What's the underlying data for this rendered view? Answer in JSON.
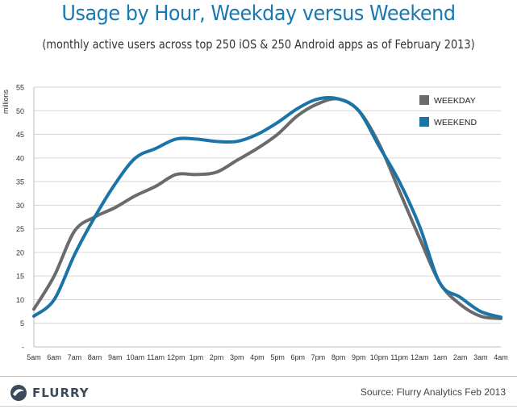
{
  "title": "Usage by Hour, Weekday versus Weekend",
  "subtitle": "(monthly active users across top 250 iOS & 250 Android apps as of February 2013)",
  "footer": {
    "brand": "FLURRY",
    "source": "Source: Flurry Analytics Feb 2013"
  },
  "colors": {
    "weekday": "#6b6b6b",
    "weekend": "#1a74a8",
    "title": "#1a78b0"
  },
  "chart_data": {
    "type": "line",
    "title": "Usage by Hour, Weekday versus Weekend",
    "ylabel": "millions",
    "xlabel": "",
    "ylim": [
      0,
      55
    ],
    "yticks": [
      "-",
      "5",
      "10",
      "15",
      "20",
      "25",
      "30",
      "35",
      "40",
      "45",
      "50",
      "55"
    ],
    "grid": true,
    "legend": "top-right",
    "categories": [
      "5am",
      "6am",
      "7am",
      "8am",
      "9am",
      "10am",
      "11am",
      "12pm",
      "1pm",
      "2pm",
      "3pm",
      "4pm",
      "5pm",
      "6pm",
      "7pm",
      "8pm",
      "9pm",
      "10pm",
      "11pm",
      "12am",
      "1am",
      "2am",
      "3am",
      "4am"
    ],
    "series": [
      {
        "name": "WEEKDAY",
        "values": [
          8,
          15,
          24.5,
          27.5,
          29.5,
          32,
          34,
          36.5,
          36.5,
          37,
          39.5,
          42,
          45,
          49,
          51.5,
          52.5,
          50,
          43,
          33,
          23,
          13.5,
          9,
          6.5,
          6
        ]
      },
      {
        "name": "WEEKEND",
        "values": [
          6.5,
          10,
          19.5,
          27.5,
          34.5,
          40,
          42,
          44,
          44,
          43.5,
          43.5,
          45,
          47.5,
          50.5,
          52.5,
          52.5,
          50,
          42.5,
          35,
          25.5,
          13.5,
          10.5,
          7.5,
          6.3
        ]
      }
    ]
  }
}
